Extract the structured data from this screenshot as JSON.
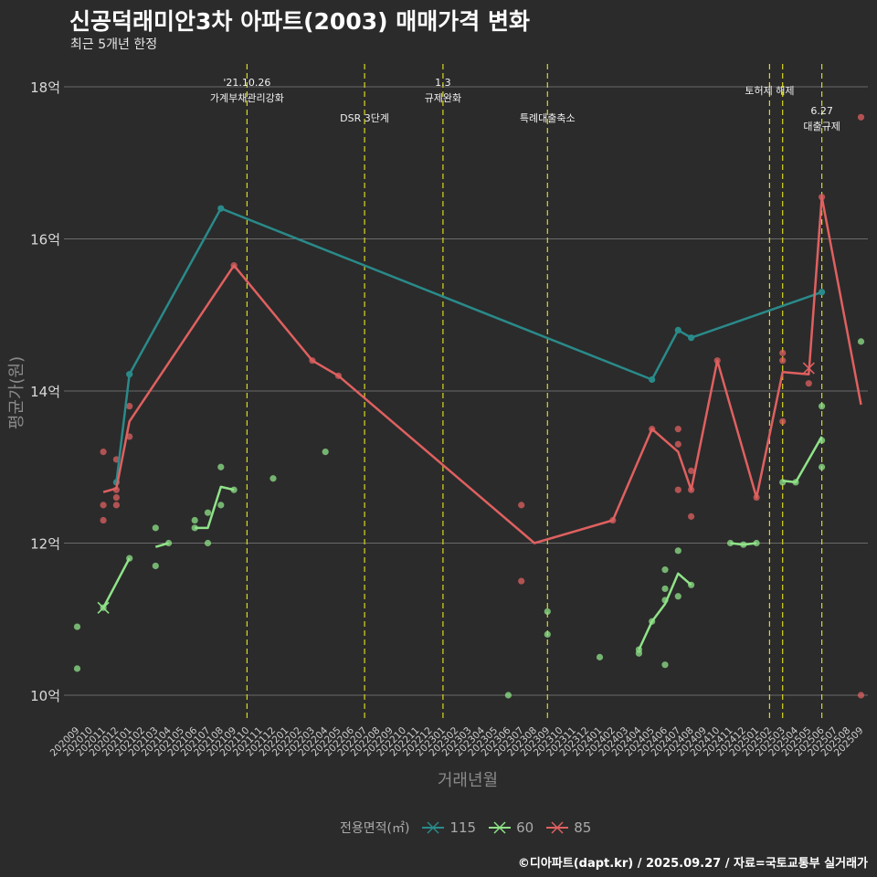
{
  "header": {
    "title": "신공덕래미안3차 아파트(2003) 매매가격 변화",
    "subtitle": "최근 5개년 한정"
  },
  "caption": "©디아파트(dapt.kr) / 2025.09.27 / 자료=국토교통부 실거래가",
  "legend": {
    "title": "전용면적(㎡)"
  },
  "colors": {
    "s115": "#2a8a8a",
    "s60": "#8fe388",
    "s85": "#e06060",
    "vline": "#d8d820",
    "grid": "#6a6a6a"
  },
  "chart_data": {
    "type": "line",
    "xlabel": "거래년월",
    "ylabel": "평균가(원)",
    "ylim": [
      9.6,
      18.3
    ],
    "yticks": [
      {
        "v": 10,
        "label": "10억"
      },
      {
        "v": 12,
        "label": "12억"
      },
      {
        "v": 14,
        "label": "14억"
      },
      {
        "v": 16,
        "label": "16억"
      },
      {
        "v": 18,
        "label": "18억"
      }
    ],
    "months": [
      "202009",
      "202010",
      "202011",
      "202012",
      "202101",
      "202102",
      "202103",
      "202104",
      "202105",
      "202106",
      "202107",
      "202108",
      "202109",
      "202110",
      "202111",
      "202112",
      "202201",
      "202202",
      "202203",
      "202204",
      "202205",
      "202206",
      "202207",
      "202208",
      "202209",
      "202210",
      "202211",
      "202212",
      "202301",
      "202302",
      "202303",
      "202304",
      "202305",
      "202306",
      "202307",
      "202308",
      "202309",
      "202310",
      "202311",
      "202312",
      "202401",
      "202402",
      "202403",
      "202404",
      "202405",
      "202406",
      "202407",
      "202408",
      "202409",
      "202410",
      "202411",
      "202412",
      "202501",
      "202502",
      "202503",
      "202504",
      "202505",
      "202506",
      "202507",
      "202508",
      "202509"
    ],
    "events": [
      {
        "month": "202110",
        "lines": [
          "'21.10.26",
          "가계부채관리강화"
        ],
        "row": 0
      },
      {
        "month": "202207",
        "lines": [
          "DSR 3단계"
        ],
        "row": 2
      },
      {
        "month": "202301",
        "lines": [
          "1.3",
          "규제완화"
        ],
        "row": 0
      },
      {
        "month": "202309",
        "lines": [
          "특례대출축소"
        ],
        "row": 2
      },
      {
        "month": "202502",
        "lines": [
          "토허제 해제"
        ],
        "row": 1
      },
      {
        "month": "202503",
        "lines": [],
        "row": 1
      },
      {
        "month": "202506",
        "lines": [
          "6.27",
          "대출규제"
        ],
        "row": 3
      }
    ],
    "series": [
      {
        "name": "115",
        "color_key": "s115",
        "line": [
          [
            "202012",
            12.8
          ],
          [
            "202101",
            14.22
          ],
          [
            "202108",
            16.4
          ],
          [
            "202405",
            14.15
          ],
          [
            "202407",
            14.8
          ],
          [
            "202408",
            14.7
          ],
          [
            "202506",
            15.3
          ]
        ],
        "points": []
      },
      {
        "name": "60",
        "color_key": "s60",
        "segments": [
          [
            [
              "202011",
              11.15
            ],
            [
              "202101",
              11.8
            ]
          ],
          [
            [
              "202103",
              11.95
            ],
            [
              "202104",
              12.0
            ]
          ],
          [
            [
              "202106",
              12.2
            ],
            [
              "202107",
              12.2
            ],
            [
              "202108",
              12.74
            ],
            [
              "202109",
              12.7
            ]
          ],
          [
            [
              "202404",
              10.6
            ],
            [
              "202405",
              10.97
            ],
            [
              "202406",
              11.2
            ],
            [
              "202407",
              11.6
            ],
            [
              "202408",
              11.45
            ]
          ],
          [
            [
              "202411",
              12.0
            ],
            [
              "202412",
              11.98
            ],
            [
              "202501",
              12.0
            ]
          ],
          [
            [
              "202503",
              12.82
            ],
            [
              "202504",
              12.8
            ],
            [
              "202506",
              13.4
            ]
          ]
        ],
        "points": [
          [
            "202009",
            10.9
          ],
          [
            "202009",
            10.35
          ],
          [
            "202011",
            11.15
          ],
          [
            "202101",
            11.8
          ],
          [
            "202103",
            12.2
          ],
          [
            "202103",
            11.7
          ],
          [
            "202104",
            12.0
          ],
          [
            "202106",
            12.3
          ],
          [
            "202106",
            12.2
          ],
          [
            "202107",
            12.4
          ],
          [
            "202107",
            12.0
          ],
          [
            "202108",
            13.0
          ],
          [
            "202108",
            12.5
          ],
          [
            "202109",
            12.7
          ],
          [
            "202112",
            12.85
          ],
          [
            "202204",
            13.2
          ],
          [
            "202306",
            10.0
          ],
          [
            "202309",
            11.1
          ],
          [
            "202309",
            10.8
          ],
          [
            "202401",
            10.5
          ],
          [
            "202404",
            10.55
          ],
          [
            "202404",
            10.6
          ],
          [
            "202405",
            10.97
          ],
          [
            "202406",
            11.65
          ],
          [
            "202406",
            11.4
          ],
          [
            "202406",
            11.25
          ],
          [
            "202406",
            10.4
          ],
          [
            "202407",
            11.9
          ],
          [
            "202407",
            11.3
          ],
          [
            "202408",
            11.45
          ],
          [
            "202411",
            12.0
          ],
          [
            "202412",
            11.98
          ],
          [
            "202501",
            12.0
          ],
          [
            "202503",
            12.8
          ],
          [
            "202504",
            12.8
          ],
          [
            "202506",
            13.8
          ],
          [
            "202506",
            13.35
          ],
          [
            "202506",
            13.0
          ],
          [
            "202509",
            14.65
          ]
        ],
        "cross": [
          "202011",
          11.15
        ]
      },
      {
        "name": "85",
        "color_key": "s85",
        "line": [
          [
            "202011",
            12.67
          ],
          [
            "202012",
            12.72
          ],
          [
            "202101",
            13.6
          ],
          [
            "202109",
            15.65
          ],
          [
            "202203",
            14.4
          ],
          [
            "202205",
            14.2
          ],
          [
            "202308",
            12.0
          ],
          [
            "202402",
            12.3
          ],
          [
            "202405",
            13.5
          ],
          [
            "202407",
            13.2
          ],
          [
            "202408",
            12.7
          ],
          [
            "202410",
            14.4
          ],
          [
            "202501",
            12.6
          ],
          [
            "202503",
            14.25
          ],
          [
            "202505",
            14.22
          ],
          [
            "202506",
            16.55
          ],
          [
            "202509",
            13.82
          ]
        ],
        "points": [
          [
            "202011",
            13.2
          ],
          [
            "202011",
            12.5
          ],
          [
            "202011",
            12.3
          ],
          [
            "202012",
            13.1
          ],
          [
            "202012",
            12.7
          ],
          [
            "202012",
            12.6
          ],
          [
            "202012",
            12.5
          ],
          [
            "202101",
            13.8
          ],
          [
            "202101",
            13.4
          ],
          [
            "202109",
            15.65
          ],
          [
            "202203",
            14.4
          ],
          [
            "202205",
            14.2
          ],
          [
            "202307",
            12.5
          ],
          [
            "202307",
            11.5
          ],
          [
            "202402",
            12.3
          ],
          [
            "202405",
            13.5
          ],
          [
            "202407",
            13.5
          ],
          [
            "202407",
            13.3
          ],
          [
            "202407",
            12.7
          ],
          [
            "202408",
            12.95
          ],
          [
            "202408",
            12.7
          ],
          [
            "202408",
            12.35
          ],
          [
            "202410",
            14.4
          ],
          [
            "202501",
            12.6
          ],
          [
            "202503",
            14.5
          ],
          [
            "202503",
            14.4
          ],
          [
            "202503",
            13.6
          ],
          [
            "202505",
            14.1
          ],
          [
            "202506",
            16.55
          ],
          [
            "202509",
            17.6
          ],
          [
            "202509",
            10.0
          ]
        ],
        "cross": [
          "202505",
          14.3
        ]
      }
    ]
  }
}
